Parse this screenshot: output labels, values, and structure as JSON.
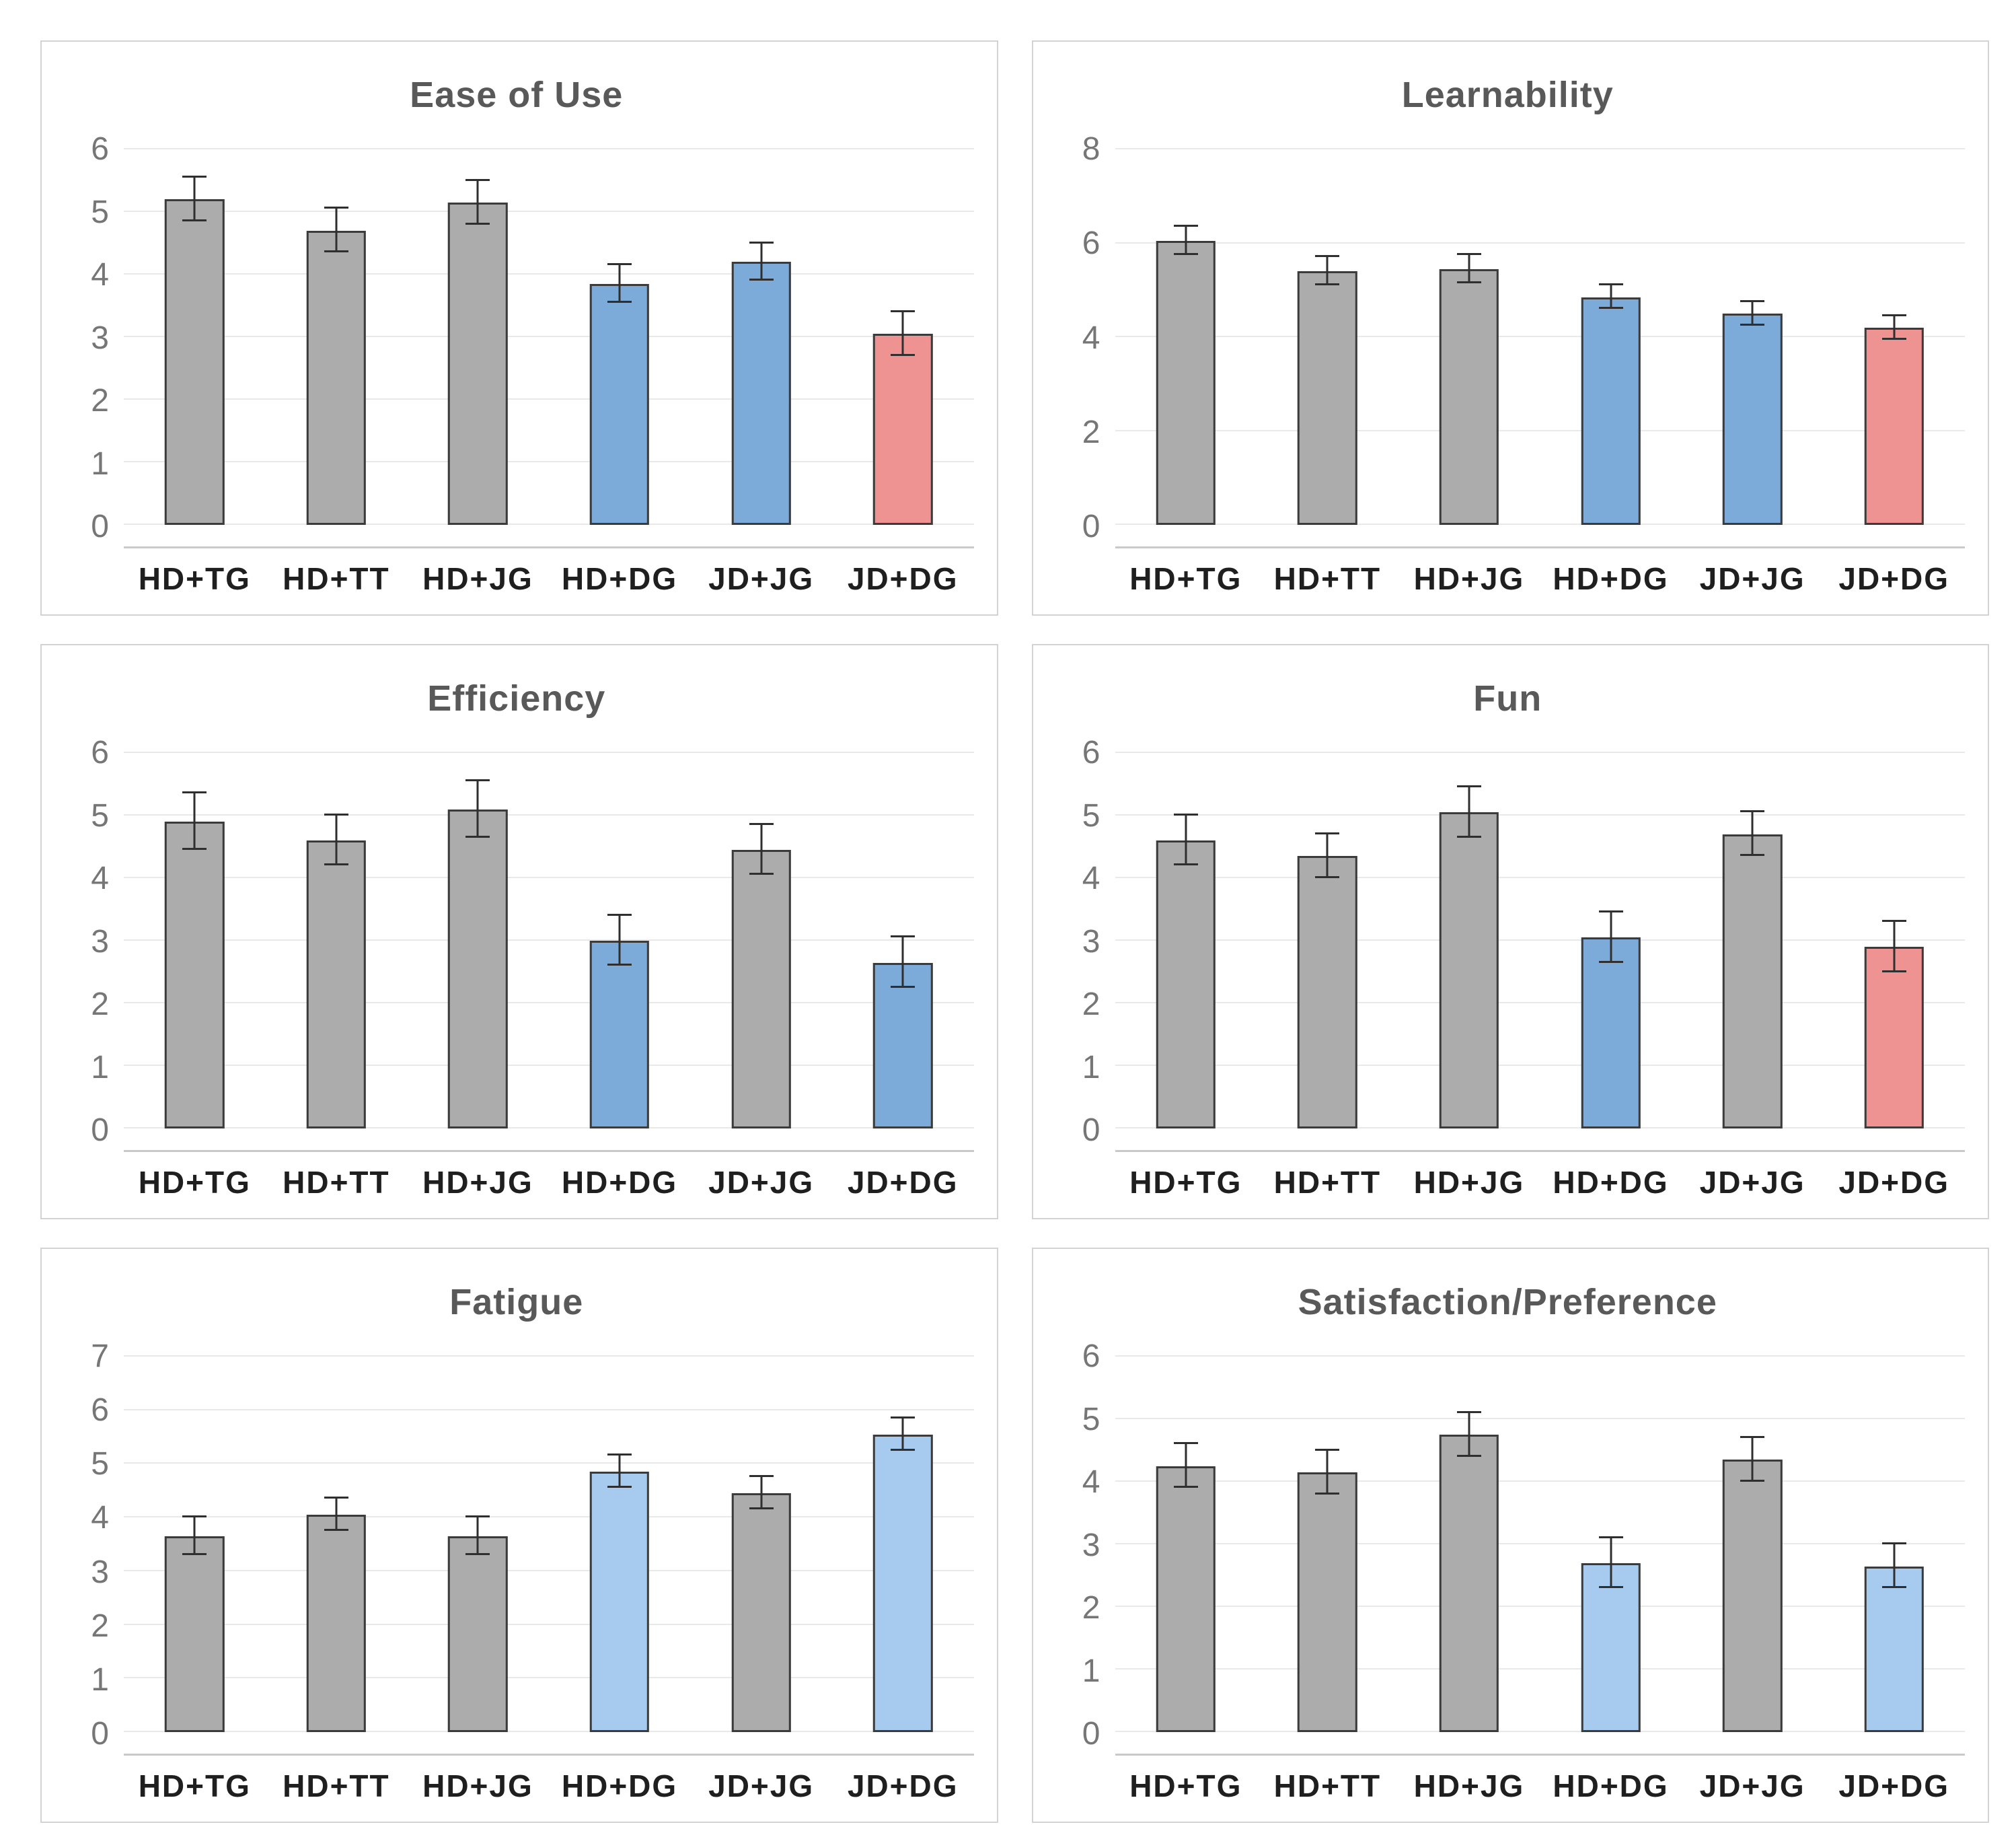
{
  "colors": {
    "gray": "#acacac",
    "blue": "#7cabd9",
    "lightblue": "#a7cbee",
    "red": "#ef9392",
    "bar_border": "#3b3b3b",
    "gridline": "#e9e9e9",
    "axis_line": "#c9c9c9",
    "panel_border": "#d3d3d3",
    "title_text": "#595959",
    "tick_text": "#767676",
    "category_text": "#1f1f1f"
  },
  "chart_data": [
    {
      "type": "bar",
      "title": "Ease of Use",
      "categories": [
        "HD+TG",
        "HD+TT",
        "HD+JG",
        "HD+DG",
        "JD+JG",
        "JD+DG"
      ],
      "values": [
        5.2,
        4.7,
        5.15,
        3.85,
        4.2,
        3.05
      ],
      "errors": [
        0.35,
        0.35,
        0.35,
        0.3,
        0.3,
        0.35
      ],
      "bar_colors": [
        "gray",
        "gray",
        "gray",
        "blue",
        "blue",
        "red"
      ],
      "ylim": [
        0,
        6
      ],
      "yticks": [
        0,
        1,
        2,
        3,
        4,
        5,
        6
      ],
      "grid": true,
      "legend": "none"
    },
    {
      "type": "bar",
      "title": "Learnability",
      "categories": [
        "HD+TG",
        "HD+TT",
        "HD+JG",
        "HD+DG",
        "JD+JG",
        "JD+DG"
      ],
      "values": [
        6.05,
        5.4,
        5.45,
        4.85,
        4.5,
        4.2
      ],
      "errors": [
        0.3,
        0.3,
        0.3,
        0.25,
        0.25,
        0.25
      ],
      "bar_colors": [
        "gray",
        "gray",
        "gray",
        "blue",
        "blue",
        "red"
      ],
      "ylim": [
        0,
        8
      ],
      "yticks": [
        0,
        2,
        4,
        6,
        8
      ],
      "grid": true,
      "legend": "none"
    },
    {
      "type": "bar",
      "title": "Efficiency",
      "categories": [
        "HD+TG",
        "HD+TT",
        "HD+JG",
        "HD+DG",
        "JD+JG",
        "JD+DG"
      ],
      "values": [
        4.9,
        4.6,
        5.1,
        3.0,
        4.45,
        2.65
      ],
      "errors": [
        0.45,
        0.4,
        0.45,
        0.4,
        0.4,
        0.4
      ],
      "bar_colors": [
        "gray",
        "gray",
        "gray",
        "blue",
        "gray",
        "blue"
      ],
      "ylim": [
        0,
        6
      ],
      "yticks": [
        0,
        1,
        2,
        3,
        4,
        5,
        6
      ],
      "grid": true,
      "legend": "none"
    },
    {
      "type": "bar",
      "title": "Fun",
      "categories": [
        "HD+TG",
        "HD+TT",
        "HD+JG",
        "HD+DG",
        "JD+JG",
        "JD+DG"
      ],
      "values": [
        4.6,
        4.35,
        5.05,
        3.05,
        4.7,
        2.9
      ],
      "errors": [
        0.4,
        0.35,
        0.4,
        0.4,
        0.35,
        0.4
      ],
      "bar_colors": [
        "gray",
        "gray",
        "gray",
        "blue",
        "gray",
        "red"
      ],
      "ylim": [
        0,
        6
      ],
      "yticks": [
        0,
        1,
        2,
        3,
        4,
        5,
        6
      ],
      "grid": true,
      "legend": "none"
    },
    {
      "type": "bar",
      "title": "Fatigue",
      "categories": [
        "HD+TG",
        "HD+TT",
        "HD+JG",
        "HD+DG",
        "JD+JG",
        "JD+DG"
      ],
      "values": [
        3.65,
        4.05,
        3.65,
        4.85,
        4.45,
        5.55
      ],
      "errors": [
        0.35,
        0.3,
        0.35,
        0.3,
        0.3,
        0.3
      ],
      "bar_colors": [
        "gray",
        "gray",
        "gray",
        "lightblue",
        "gray",
        "lightblue"
      ],
      "ylim": [
        0,
        7
      ],
      "yticks": [
        0,
        1,
        2,
        3,
        4,
        5,
        6,
        7
      ],
      "grid": true,
      "legend": "none"
    },
    {
      "type": "bar",
      "title": "Satisfaction/Preference",
      "categories": [
        "HD+TG",
        "HD+TT",
        "HD+JG",
        "HD+DG",
        "JD+JG",
        "JD+DG"
      ],
      "values": [
        4.25,
        4.15,
        4.75,
        2.7,
        4.35,
        2.65
      ],
      "errors": [
        0.35,
        0.35,
        0.35,
        0.4,
        0.35,
        0.35
      ],
      "bar_colors": [
        "gray",
        "gray",
        "gray",
        "lightblue",
        "gray",
        "lightblue"
      ],
      "ylim": [
        0,
        6
      ],
      "yticks": [
        0,
        1,
        2,
        3,
        4,
        5,
        6
      ],
      "grid": true,
      "legend": "none"
    }
  ]
}
